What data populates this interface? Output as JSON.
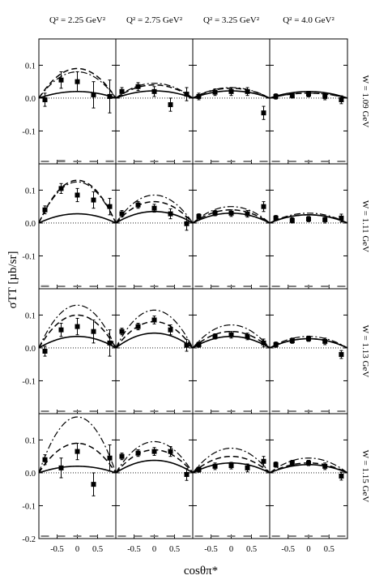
{
  "chart_data": {
    "type": "scatter",
    "columns": [
      "Q² = 2.25 GeV²",
      "Q² = 2.75 GeV²",
      "Q² = 3.25 GeV²",
      "Q² = 4.0 GeV²"
    ],
    "rows": [
      "W = 1.09 GeV",
      "W = 1.11 GeV",
      "W = 1.13 GeV",
      "W = 1.15 GeV"
    ],
    "ylabel": "σTT [µb/sr]",
    "xlabel": "cosθπ*",
    "xlim": [
      -0.95,
      0.95
    ],
    "ylim": [
      -0.2,
      0.18
    ],
    "yticks": [
      -0.2,
      -0.1,
      0.0,
      0.1
    ],
    "ytick_labels": [
      "-0.2",
      "-0.1",
      "0.0",
      "0.1"
    ],
    "xticks": [
      -0.5,
      0,
      0.5
    ],
    "xtick_labels": [
      "-0.5",
      "0",
      "0.5"
    ],
    "zero_line": "dotted",
    "curve_styles": [
      "solid",
      "dashed",
      "dash-dot"
    ],
    "panels": [
      {
        "row": 0,
        "col": 0,
        "points": [
          [
            -0.8,
            -0.005,
            0.02
          ],
          [
            -0.4,
            0.055,
            0.025
          ],
          [
            0.0,
            0.05,
            0.03
          ],
          [
            0.4,
            0.01,
            0.04
          ],
          [
            0.8,
            0.005,
            0.05
          ]
        ],
        "sys": [
          0.006,
          0.01,
          0.006,
          0.004,
          0.008
        ]
      },
      {
        "row": 0,
        "col": 1,
        "points": [
          [
            -0.8,
            0.02,
            0.012
          ],
          [
            -0.4,
            0.035,
            0.012
          ],
          [
            0.0,
            0.02,
            0.015
          ],
          [
            0.4,
            -0.02,
            0.02
          ],
          [
            0.8,
            0.012,
            0.02
          ]
        ],
        "sys": [
          0.006,
          0.005,
          0.005,
          0.005,
          0.004
        ]
      },
      {
        "row": 0,
        "col": 2,
        "points": [
          [
            -0.8,
            0.005,
            0.01
          ],
          [
            -0.4,
            0.018,
            0.01
          ],
          [
            0.0,
            0.02,
            0.012
          ],
          [
            0.4,
            0.02,
            0.012
          ],
          [
            0.8,
            -0.045,
            0.02
          ]
        ],
        "sys": [
          0.003,
          0.004,
          0.005,
          0.004,
          0.004
        ]
      },
      {
        "row": 0,
        "col": 3,
        "points": [
          [
            -0.8,
            0.005,
            0.008
          ],
          [
            -0.4,
            0.008,
            0.008
          ],
          [
            0.0,
            0.012,
            0.008
          ],
          [
            0.4,
            0.005,
            0.01
          ],
          [
            0.8,
            -0.005,
            0.012
          ]
        ],
        "sys": [
          0.003,
          0.003,
          0.003,
          0.003,
          0.003
        ]
      },
      {
        "row": 1,
        "col": 0,
        "points": [
          [
            -0.8,
            0.04,
            0.012
          ],
          [
            -0.4,
            0.105,
            0.015
          ],
          [
            0.0,
            0.085,
            0.02
          ],
          [
            0.4,
            0.07,
            0.025
          ],
          [
            0.8,
            0.05,
            0.025
          ]
        ],
        "sys": [
          0.008,
          0.004,
          0.004,
          0.004,
          0.004
        ]
      },
      {
        "row": 1,
        "col": 1,
        "points": [
          [
            -0.8,
            0.028,
            0.01
          ],
          [
            -0.4,
            0.055,
            0.01
          ],
          [
            0.0,
            0.045,
            0.012
          ],
          [
            0.4,
            0.028,
            0.015
          ],
          [
            0.8,
            -0.002,
            0.02
          ]
        ],
        "sys": [
          0.004,
          0.004,
          0.004,
          0.004,
          0.004
        ]
      },
      {
        "row": 1,
        "col": 2,
        "points": [
          [
            -0.8,
            0.02,
            0.008
          ],
          [
            -0.4,
            0.03,
            0.008
          ],
          [
            0.0,
            0.03,
            0.01
          ],
          [
            0.4,
            0.028,
            0.01
          ],
          [
            0.8,
            0.05,
            0.015
          ]
        ],
        "sys": [
          0.003,
          0.003,
          0.003,
          0.003,
          0.003
        ]
      },
      {
        "row": 1,
        "col": 3,
        "points": [
          [
            -0.8,
            0.015,
            0.008
          ],
          [
            -0.4,
            0.008,
            0.008
          ],
          [
            0.0,
            0.012,
            0.008
          ],
          [
            0.4,
            0.01,
            0.01
          ],
          [
            0.8,
            0.015,
            0.012
          ]
        ],
        "sys": [
          0.003,
          0.003,
          0.003,
          0.003,
          0.003
        ]
      },
      {
        "row": 2,
        "col": 0,
        "points": [
          [
            -0.8,
            -0.01,
            0.015
          ],
          [
            -0.4,
            0.055,
            0.02
          ],
          [
            0.0,
            0.065,
            0.025
          ],
          [
            0.4,
            0.05,
            0.035
          ],
          [
            0.8,
            0.015,
            0.04
          ]
        ],
        "sys": [
          0.006,
          0.004,
          0.004,
          0.004,
          0.004
        ]
      },
      {
        "row": 2,
        "col": 1,
        "points": [
          [
            -0.8,
            0.05,
            0.01
          ],
          [
            -0.4,
            0.065,
            0.01
          ],
          [
            0.0,
            0.085,
            0.012
          ],
          [
            0.4,
            0.055,
            0.015
          ],
          [
            0.8,
            0.008,
            0.018
          ]
        ],
        "sys": [
          0.003,
          0.003,
          0.003,
          0.003,
          0.003
        ]
      },
      {
        "row": 2,
        "col": 2,
        "points": [
          [
            -0.8,
            0.01,
            0.008
          ],
          [
            -0.4,
            0.035,
            0.008
          ],
          [
            0.0,
            0.04,
            0.01
          ],
          [
            0.4,
            0.035,
            0.01
          ],
          [
            0.8,
            0.015,
            0.012
          ]
        ],
        "sys": [
          0.003,
          0.003,
          0.003,
          0.003,
          0.003
        ]
      },
      {
        "row": 2,
        "col": 3,
        "points": [
          [
            -0.8,
            0.01,
            0.008
          ],
          [
            -0.4,
            0.022,
            0.008
          ],
          [
            0.0,
            0.028,
            0.008
          ],
          [
            0.4,
            0.02,
            0.01
          ],
          [
            0.8,
            -0.02,
            0.012
          ]
        ],
        "sys": [
          0.003,
          0.003,
          0.003,
          0.003,
          0.003
        ]
      },
      {
        "row": 3,
        "col": 0,
        "points": [
          [
            -0.8,
            0.04,
            0.015
          ],
          [
            -0.4,
            0.015,
            0.03
          ],
          [
            0.0,
            0.065,
            0.025
          ],
          [
            0.4,
            -0.035,
            0.035
          ],
          [
            0.8,
            0.045,
            0.04
          ]
        ],
        "sys": [
          0.004,
          0.004,
          0.004,
          0.004,
          0.004
        ]
      },
      {
        "row": 3,
        "col": 1,
        "points": [
          [
            -0.8,
            0.05,
            0.01
          ],
          [
            -0.4,
            0.06,
            0.01
          ],
          [
            0.0,
            0.065,
            0.012
          ],
          [
            0.4,
            0.065,
            0.015
          ],
          [
            0.8,
            -0.005,
            0.018
          ]
        ],
        "sys": [
          0.004,
          0.004,
          0.004,
          0.004,
          0.006
        ]
      },
      {
        "row": 3,
        "col": 2,
        "points": [
          [
            -0.8,
            0.01,
            0.008
          ],
          [
            -0.4,
            0.02,
            0.01
          ],
          [
            0.0,
            0.022,
            0.01
          ],
          [
            0.4,
            0.015,
            0.012
          ],
          [
            0.8,
            0.035,
            0.015
          ]
        ],
        "sys": [
          0.003,
          0.003,
          0.003,
          0.003,
          0.003
        ]
      },
      {
        "row": 3,
        "col": 3,
        "points": [
          [
            -0.8,
            0.025,
            0.008
          ],
          [
            -0.4,
            0.03,
            0.008
          ],
          [
            0.0,
            0.03,
            0.008
          ],
          [
            0.4,
            0.02,
            0.01
          ],
          [
            0.8,
            -0.01,
            0.012
          ]
        ],
        "sys": [
          0.003,
          0.003,
          0.003,
          0.003,
          0.003
        ]
      }
    ],
    "curves": {
      "solid": [
        [
          0.02,
          0.022,
          0.022,
          0.02
        ],
        [
          0.028,
          0.035,
          0.03,
          0.025
        ],
        [
          0.035,
          0.045,
          0.035,
          0.028
        ],
        [
          0.02,
          0.038,
          0.03,
          0.025
        ]
      ],
      "dashed": [
        [
          0.09,
          0.04,
          0.03,
          0.015
        ],
        [
          0.13,
          0.065,
          0.04,
          0.025
        ],
        [
          0.1,
          0.08,
          0.05,
          0.028
        ],
        [
          0.09,
          0.07,
          0.05,
          0.03
        ]
      ],
      "dashdot": [
        [
          0.08,
          0.045,
          0.032,
          0.015
        ],
        [
          0.125,
          0.085,
          0.05,
          0.03
        ],
        [
          0.13,
          0.115,
          0.07,
          0.035
        ],
        [
          0.17,
          0.095,
          0.075,
          0.045
        ]
      ]
    }
  }
}
